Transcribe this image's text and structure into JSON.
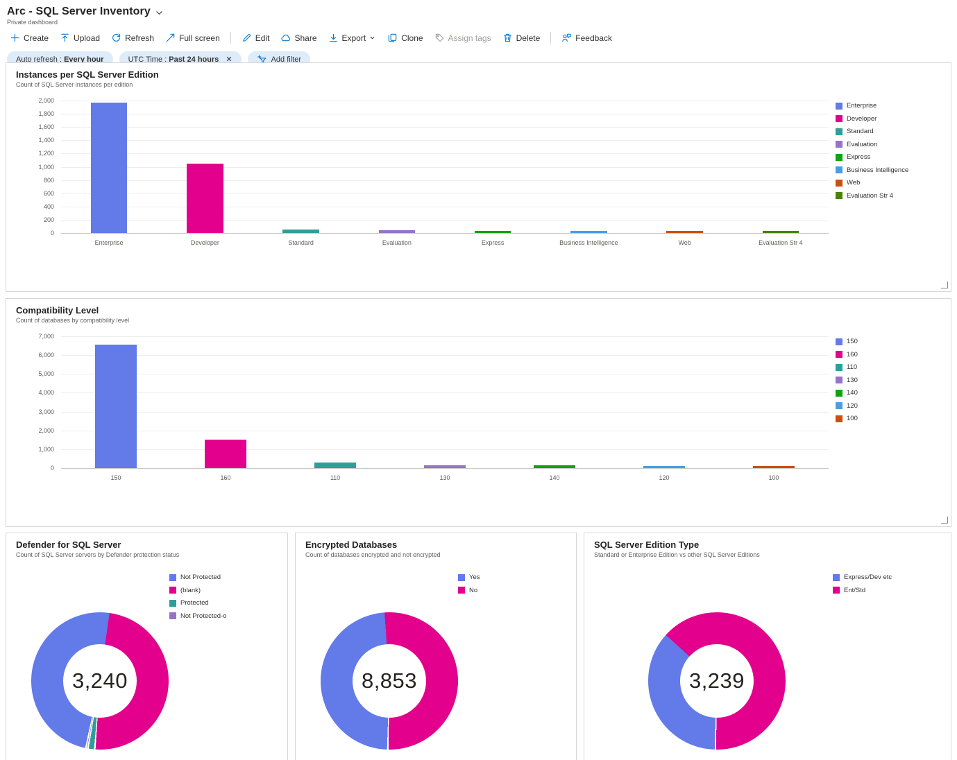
{
  "header": {
    "title": "Arc - SQL Server Inventory",
    "subtitle": "Private dashboard"
  },
  "toolbar": {
    "items": [
      {
        "id": "create",
        "label": "Create",
        "icon": "add"
      },
      {
        "id": "upload",
        "label": "Upload",
        "icon": "upload"
      },
      {
        "id": "refresh",
        "label": "Refresh",
        "icon": "refresh"
      },
      {
        "id": "fullscreen",
        "label": "Full screen",
        "icon": "fullscreen"
      },
      {
        "type": "separator"
      },
      {
        "id": "edit",
        "label": "Edit",
        "icon": "edit"
      },
      {
        "id": "share",
        "label": "Share",
        "icon": "share"
      },
      {
        "id": "export",
        "label": "Export",
        "icon": "export",
        "caret": true
      },
      {
        "id": "clone",
        "label": "Clone",
        "icon": "clone"
      },
      {
        "id": "assign-tags",
        "label": "Assign tags",
        "icon": "tag",
        "disabled": true
      },
      {
        "id": "delete",
        "label": "Delete",
        "icon": "delete"
      },
      {
        "type": "separator"
      },
      {
        "id": "feedback",
        "label": "Feedback",
        "icon": "feedback"
      }
    ]
  },
  "filters": {
    "pills": [
      {
        "id": "auto-refresh",
        "label": "Auto refresh :",
        "value": "Every hour"
      },
      {
        "id": "utc-time",
        "label": "UTC Time :",
        "value": "Past 24 hours",
        "closable": true
      },
      {
        "id": "add-filter",
        "label": "Add filter",
        "icon": "add-filter"
      }
    ]
  },
  "colors": {
    "accent": "#0078d4",
    "pill_bg": "#deecf9",
    "blue": "#637ae9",
    "magenta": "#e3008c",
    "teal": "#2f9e99",
    "purple": "#9673c7",
    "green": "#13a10e",
    "light_blue": "#4a9ce8",
    "orange": "#ca5010",
    "dark_green": "#498205"
  },
  "chart_data": [
    {
      "type": "bar",
      "title": "Instances per SQL Server Edition",
      "subtitle": "Count of SQL Server instances per edition",
      "categories": [
        "Enterprise",
        "Developer",
        "Standard",
        "Evaluation",
        "Express",
        "Business Intelligence",
        "Web",
        "Evaluation Str 4"
      ],
      "values": [
        1965,
        1050,
        55,
        40,
        30,
        8,
        5,
        4
      ],
      "color_keys": [
        "blue",
        "magenta",
        "teal",
        "purple",
        "green",
        "light_blue",
        "orange",
        "dark_green"
      ],
      "ylim": [
        0,
        2000
      ],
      "ytick_step": 200,
      "grid": true,
      "legend_position": "right"
    },
    {
      "type": "bar",
      "title": "Compatibility Level",
      "subtitle": "Count of databases by compatibility level",
      "categories": [
        "150",
        "160",
        "110",
        "130",
        "140",
        "120",
        "100"
      ],
      "values": [
        6550,
        1500,
        280,
        160,
        130,
        100,
        30
      ],
      "color_keys": [
        "blue",
        "magenta",
        "teal",
        "purple",
        "green",
        "light_blue",
        "orange"
      ],
      "ylim": [
        0,
        7000
      ],
      "ytick_step": 1000,
      "grid": true,
      "legend_position": "right"
    },
    {
      "type": "donut",
      "title": "Defender for SQL Server",
      "subtitle": "Count of SQL Server servers by Defender protection status",
      "center_label": "3,240",
      "start_angle": 8,
      "legend": [
        {
          "label": "Not Protected",
          "color_key": "blue"
        },
        {
          "label": "(blank)",
          "color_key": "magenta"
        },
        {
          "label": "Protected",
          "color_key": "teal"
        },
        {
          "label": "Not Protected-o",
          "color_key": "purple"
        }
      ],
      "slices": [
        {
          "label": "(blank)",
          "color_key": "magenta",
          "pct": 48.8
        },
        {
          "label": "Protected",
          "color_key": "teal",
          "pct": 1.6
        },
        {
          "label": "Not Protected-o",
          "color_key": "purple",
          "pct": 0.5
        },
        {
          "label": "Not Protected",
          "color_key": "blue",
          "pct": 49.1
        }
      ]
    },
    {
      "type": "donut",
      "title": "Encrypted Databases",
      "subtitle": "Count of databases encrypted and not encrypted",
      "center_label": "8,853",
      "start_angle": -4,
      "legend": [
        {
          "label": "Yes",
          "color_key": "blue"
        },
        {
          "label": "No",
          "color_key": "magenta"
        }
      ],
      "slices": [
        {
          "label": "No",
          "color_key": "magenta",
          "pct": 51.3
        },
        {
          "label": "Yes",
          "color_key": "blue",
          "pct": 48.7
        }
      ]
    },
    {
      "type": "donut",
      "title": "SQL Server Edition Type",
      "subtitle": "Standard or Enterprise Edition vs other SQL Server Editions",
      "center_label": "3,239",
      "start_angle": -48,
      "legend": [
        {
          "label": "Express/Dev etc",
          "color_key": "blue"
        },
        {
          "label": "Ent/Std",
          "color_key": "magenta"
        }
      ],
      "slices": [
        {
          "label": "Ent/Std",
          "color_key": "magenta",
          "pct": 63.5
        },
        {
          "label": "Express/Dev etc",
          "color_key": "blue",
          "pct": 36.5
        }
      ]
    }
  ]
}
